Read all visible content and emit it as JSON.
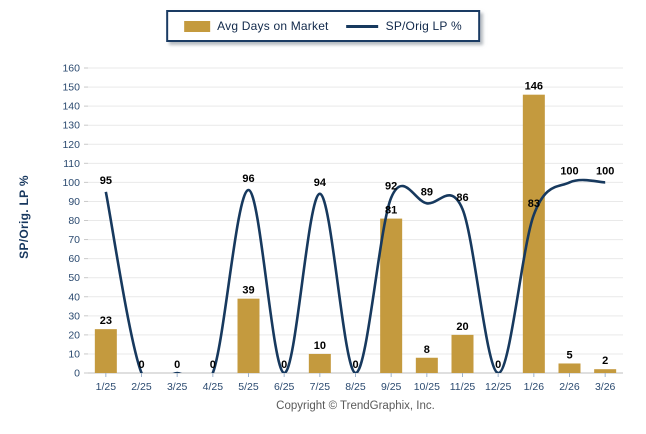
{
  "legend": {
    "bar_label": "Avg Days on Market",
    "line_label": "SP/Orig LP %"
  },
  "footer": {
    "copyright": "Copyright © TrendGraphix, Inc."
  },
  "colors": {
    "bar": "#C49A3E",
    "line": "#17395E",
    "grid": "#E9E9E9",
    "axis": "#BFBFBF",
    "y_tick": "#C9C9C9",
    "x_tick": "#9FB3CC",
    "tick_label": "#2B4A70",
    "data_label": "#000000",
    "legend_border": "#1A3B63"
  },
  "chart_data": {
    "type": "combo",
    "categories": [
      "1/25",
      "2/25",
      "3/25",
      "4/25",
      "5/25",
      "6/25",
      "7/25",
      "8/25",
      "9/25",
      "10/25",
      "11/25",
      "12/25",
      "1/26",
      "2/26",
      "3/26"
    ],
    "series": [
      {
        "name": "Avg Days on Market",
        "type": "bar",
        "color": "#C49A3E",
        "values": [
          23,
          0,
          0,
          0,
          39,
          0,
          10,
          0,
          81,
          8,
          20,
          0,
          146,
          5,
          2
        ]
      },
      {
        "name": "SP/Orig LP %",
        "type": "line",
        "color": "#17395E",
        "values": [
          95,
          0,
          0,
          0,
          96,
          0,
          94,
          0,
          92,
          89,
          86,
          0,
          83,
          100,
          100
        ]
      }
    ],
    "title": "",
    "xlabel": "",
    "ylabel": "SP/Orig. LP %",
    "ylim": [
      0,
      160
    ],
    "yticks": [
      0,
      10,
      20,
      30,
      40,
      50,
      60,
      70,
      80,
      90,
      100,
      110,
      120,
      130,
      140,
      150,
      160
    ],
    "grid": true,
    "data_labels": true,
    "legend_position": "top"
  }
}
